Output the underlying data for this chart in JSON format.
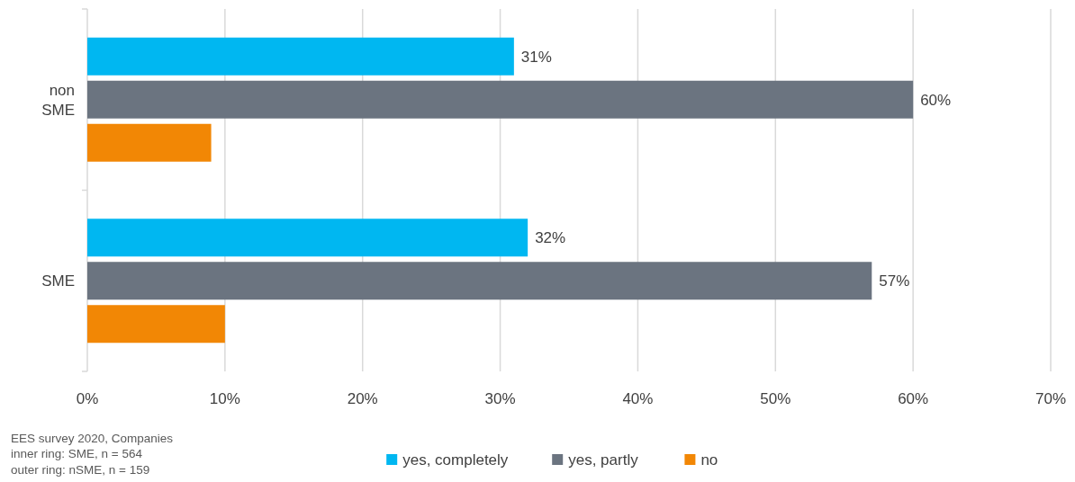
{
  "chart_data": {
    "type": "bar",
    "orientation": "horizontal",
    "categories": [
      "non SME",
      "SME"
    ],
    "series": [
      {
        "name": "yes, completely",
        "color": "#00b7f1",
        "values": [
          31,
          32
        ],
        "value_labels": [
          "31%",
          "32%"
        ]
      },
      {
        "name": "yes, partly",
        "color": "#6b7480",
        "values": [
          60,
          57
        ],
        "value_labels": [
          "60%",
          "57%"
        ]
      },
      {
        "name": "no",
        "color": "#f28705",
        "values": [
          9,
          10
        ],
        "value_labels": [
          null,
          null
        ]
      }
    ],
    "xlim": [
      0,
      70
    ],
    "xticks": [
      {
        "value": 0,
        "label": "0%"
      },
      {
        "value": 10,
        "label": "10%"
      },
      {
        "value": 20,
        "label": "20%"
      },
      {
        "value": 30,
        "label": "30%"
      },
      {
        "value": 40,
        "label": "40%"
      },
      {
        "value": 50,
        "label": "50%"
      },
      {
        "value": 60,
        "label": "60%"
      },
      {
        "value": 70,
        "label": "70%"
      }
    ],
    "grid": "x",
    "legend": "bottom",
    "annotations": [
      "EES survey 2020, Companies",
      "inner ring: SME, n = 564",
      "outer ring: nSME, n = 159"
    ]
  }
}
